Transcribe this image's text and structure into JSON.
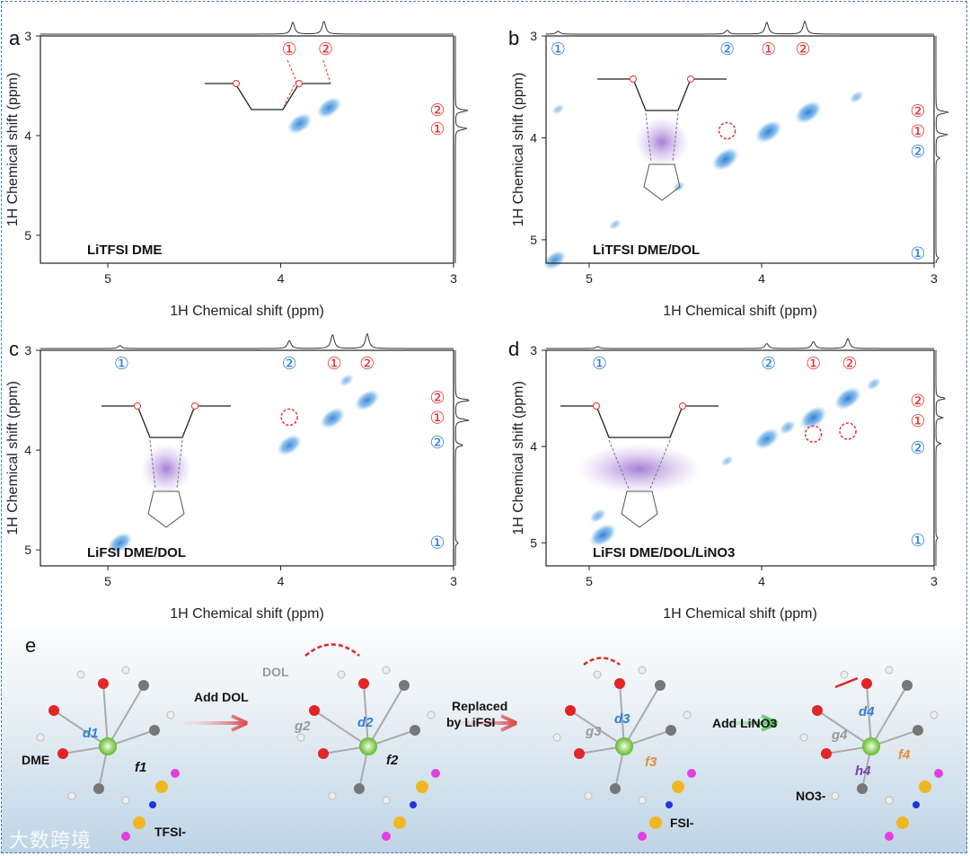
{
  "panel_letters": [
    "a",
    "b",
    "c",
    "d",
    "e"
  ],
  "chart_data": [
    {
      "id": "a",
      "type": "heatmap",
      "title": "LiTFSI DME",
      "xlabel": "1H Chemical shift (ppm)",
      "ylabel": "1H Chemical shift (ppm)",
      "xlim": [
        5.39,
        3.0
      ],
      "ylim": [
        3.0,
        5.28
      ],
      "xticks": [
        "5",
        "4",
        "3"
      ],
      "yticks": [
        "3",
        "4",
        "5"
      ],
      "cross_peaks": [
        {
          "x": 3.89,
          "y": 3.88,
          "intensity": 0.8
        },
        {
          "x": 3.72,
          "y": 3.72,
          "intensity": 0.8
        }
      ],
      "projection_peaks": [
        {
          "ppm": 3.93,
          "height": 0.6
        },
        {
          "ppm": 3.75,
          "height": 0.65
        }
      ],
      "annotations_top": [
        {
          "text": "①",
          "ppm": 3.95,
          "color": "red"
        },
        {
          "text": "②",
          "ppm": 3.74,
          "color": "red"
        }
      ],
      "annotations_right": [
        {
          "text": "②",
          "ppm": 3.74,
          "color": "red"
        },
        {
          "text": "①",
          "ppm": 3.93,
          "color": "red"
        }
      ],
      "dashed_circles": []
    },
    {
      "id": "b",
      "type": "heatmap",
      "title": "LiTFSI DME/DOL",
      "xlabel": "1H Chemical shift (ppm)",
      "ylabel": "1H Chemical shift (ppm)",
      "xlim": [
        5.25,
        3.0
      ],
      "ylim": [
        3.0,
        5.23
      ],
      "xticks": [
        "5",
        "4",
        "3"
      ],
      "yticks": [
        "3",
        "4",
        "5"
      ],
      "cross_peaks": [
        {
          "x": 5.2,
          "y": 5.2,
          "intensity": 0.7
        },
        {
          "x": 4.21,
          "y": 4.21,
          "intensity": 0.9
        },
        {
          "x": 3.96,
          "y": 3.94,
          "intensity": 0.9
        },
        {
          "x": 3.73,
          "y": 3.75,
          "intensity": 0.9
        },
        {
          "x": 4.85,
          "y": 4.85,
          "intensity": 0.2
        },
        {
          "x": 4.48,
          "y": 4.48,
          "intensity": 0.2
        },
        {
          "x": 3.45,
          "y": 3.6,
          "intensity": 0.3
        },
        {
          "x": 5.18,
          "y": 3.72,
          "intensity": 0.2
        }
      ],
      "projection_peaks": [
        {
          "ppm": 3.97,
          "height": 0.6
        },
        {
          "ppm": 3.75,
          "height": 0.65
        },
        {
          "ppm": 4.2,
          "height": 0.2
        },
        {
          "ppm": 5.18,
          "height": 0.15
        }
      ],
      "annotations_top": [
        {
          "text": "①",
          "ppm": 5.18,
          "color": "blue"
        },
        {
          "text": "②",
          "ppm": 4.2,
          "color": "blue"
        },
        {
          "text": "①",
          "ppm": 3.96,
          "color": "red"
        },
        {
          "text": "②",
          "ppm": 3.76,
          "color": "red"
        }
      ],
      "annotations_right": [
        {
          "text": "②",
          "ppm": 3.73,
          "color": "red"
        },
        {
          "text": "①",
          "ppm": 3.93,
          "color": "red"
        },
        {
          "text": "②",
          "ppm": 4.13,
          "color": "blue"
        },
        {
          "text": "①",
          "ppm": 5.13,
          "color": "blue"
        }
      ],
      "dashed_circles": [
        {
          "x": 4.2,
          "y": 3.93
        }
      ]
    },
    {
      "id": "c",
      "type": "heatmap",
      "title": "LiFSI DME/DOL",
      "xlabel": "1H Chemical shift (ppm)",
      "ylabel": "1H Chemical shift (ppm)",
      "xlim": [
        5.39,
        3.0
      ],
      "ylim": [
        3.0,
        5.16
      ],
      "xticks": [
        "5",
        "4",
        "3"
      ],
      "yticks": [
        "3",
        "4",
        "5"
      ],
      "cross_peaks": [
        {
          "x": 4.93,
          "y": 4.93,
          "intensity": 0.8
        },
        {
          "x": 3.95,
          "y": 3.95,
          "intensity": 0.8
        },
        {
          "x": 3.7,
          "y": 3.68,
          "intensity": 0.8
        },
        {
          "x": 3.5,
          "y": 3.5,
          "intensity": 0.8
        },
        {
          "x": 3.62,
          "y": 3.3,
          "intensity": 0.3
        }
      ],
      "projection_peaks": [
        {
          "ppm": 4.93,
          "height": 0.15
        },
        {
          "ppm": 3.95,
          "height": 0.4
        },
        {
          "ppm": 3.7,
          "height": 0.7
        },
        {
          "ppm": 3.5,
          "height": 0.75
        }
      ],
      "annotations_top": [
        {
          "text": "①",
          "ppm": 4.92,
          "color": "blue"
        },
        {
          "text": "②",
          "ppm": 3.95,
          "color": "blue"
        },
        {
          "text": "①",
          "ppm": 3.69,
          "color": "red"
        },
        {
          "text": "②",
          "ppm": 3.5,
          "color": "red"
        }
      ],
      "annotations_right": [
        {
          "text": "②",
          "ppm": 3.47,
          "color": "red"
        },
        {
          "text": "①",
          "ppm": 3.67,
          "color": "red"
        },
        {
          "text": "②",
          "ppm": 3.92,
          "color": "blue"
        },
        {
          "text": "①",
          "ppm": 4.92,
          "color": "blue"
        }
      ],
      "dashed_circles": [
        {
          "x": 3.95,
          "y": 3.67
        }
      ]
    },
    {
      "id": "d",
      "type": "heatmap",
      "title": "LiFSI DME/DOL/LiNO3",
      "xlabel": "1H Chemical shift (ppm)",
      "ylabel": "1H Chemical shift (ppm)",
      "xlim": [
        5.25,
        3.0
      ],
      "ylim": [
        3.0,
        5.24
      ],
      "xticks": [
        "5",
        "4",
        "3"
      ],
      "yticks": [
        "3",
        "4",
        "5"
      ],
      "cross_peaks": [
        {
          "x": 4.92,
          "y": 4.92,
          "intensity": 0.9
        },
        {
          "x": 4.95,
          "y": 4.72,
          "intensity": 0.4
        },
        {
          "x": 3.97,
          "y": 3.92,
          "intensity": 0.8
        },
        {
          "x": 3.7,
          "y": 3.7,
          "intensity": 0.9
        },
        {
          "x": 3.5,
          "y": 3.5,
          "intensity": 0.9
        },
        {
          "x": 3.85,
          "y": 3.8,
          "intensity": 0.4
        },
        {
          "x": 3.35,
          "y": 3.35,
          "intensity": 0.3
        },
        {
          "x": 4.2,
          "y": 4.15,
          "intensity": 0.2
        }
      ],
      "projection_peaks": [
        {
          "ppm": 4.95,
          "height": 0.1
        },
        {
          "ppm": 3.97,
          "height": 0.25
        },
        {
          "ppm": 3.7,
          "height": 0.35
        },
        {
          "ppm": 3.5,
          "height": 0.5
        }
      ],
      "annotations_top": [
        {
          "text": "①",
          "ppm": 4.94,
          "color": "blue"
        },
        {
          "text": "②",
          "ppm": 3.96,
          "color": "blue"
        },
        {
          "text": "①",
          "ppm": 3.7,
          "color": "red"
        },
        {
          "text": "②",
          "ppm": 3.49,
          "color": "red"
        }
      ],
      "annotations_right": [
        {
          "text": "②",
          "ppm": 3.52,
          "color": "red"
        },
        {
          "text": "①",
          "ppm": 3.73,
          "color": "red"
        },
        {
          "text": "②",
          "ppm": 4.01,
          "color": "blue"
        },
        {
          "text": "①",
          "ppm": 4.97,
          "color": "blue"
        }
      ],
      "dashed_circles": [
        {
          "x": 3.7,
          "y": 3.87
        },
        {
          "x": 3.5,
          "y": 3.84
        }
      ]
    }
  ],
  "panel_e": {
    "steps": [
      "Add DOL",
      "Replaced",
      "by LiFSI",
      "Add LiNO3"
    ],
    "labels": {
      "dme": "DME",
      "tfsi": "TFSI-",
      "dol": "DOL",
      "fsi": "FSI-",
      "no3": "NO3-"
    },
    "distances": {
      "d1": "d1",
      "f1": "f1",
      "d2": "d2",
      "f2": "f2",
      "g2": "g2",
      "d3": "d3",
      "f3": "f3",
      "g3": "g3",
      "d4": "d4",
      "f4": "f4",
      "g4": "g4",
      "h4": "h4"
    },
    "watermark": "大数跨境"
  },
  "colors": {
    "red_label": "#e8322f",
    "blue_label": "#2f7fd6",
    "contour": "#2a86d8",
    "frame": "#4a78b5"
  }
}
